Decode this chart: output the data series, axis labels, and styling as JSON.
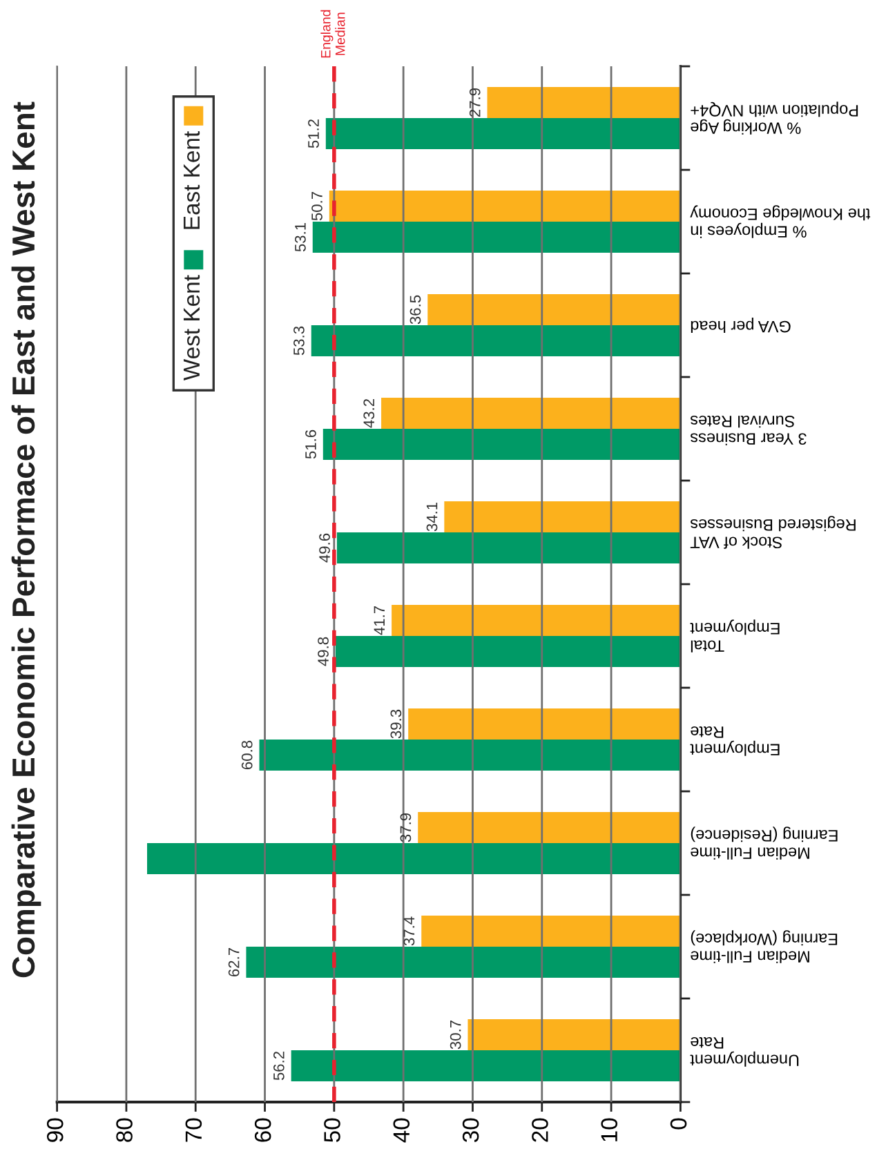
{
  "chart_data": {
    "type": "bar",
    "orientation": "horizontal",
    "title": "Comparative Economic Performace of East and West Kent",
    "categories": [
      "% Working Age\nPopulation with NVQ4+",
      "% Employees in\nthe Knowledge Economy",
      "GVA per head",
      "3 Year Business\nSurvival Rates",
      "Stock of VAT\nRegistered Businesses",
      "Total\nEmployment",
      "Employment\nRate",
      "Median Full-time\nEarning (Residence)",
      "Median Full-time\nEarning (Workplace)",
      "Unemployment\nRate"
    ],
    "series": [
      {
        "name": "West Kent",
        "color": "#009a66",
        "values": [
          51.2,
          53.1,
          53.3,
          51.6,
          49.6,
          49.8,
          60.8,
          77,
          62.7,
          56.2
        ],
        "value_labels": [
          "51.2",
          "53.1",
          "53.3",
          "51.6",
          "49.6",
          "49.8",
          "60.8",
          null,
          "62.7",
          "56.2"
        ]
      },
      {
        "name": "East Kent",
        "color": "#fcb11c",
        "values": [
          27.9,
          50.7,
          36.5,
          43.2,
          34.1,
          41.7,
          39.3,
          37.9,
          37.4,
          30.7
        ],
        "value_labels": [
          "27.9",
          "50.7",
          "36.5",
          "43.2",
          "34.1",
          "41.7",
          "39.3",
          "37.9",
          "37.4",
          "30.7"
        ]
      }
    ],
    "xlim": [
      90,
      0
    ],
    "xticks": [
      0,
      10,
      20,
      30,
      40,
      50,
      60,
      70,
      80,
      90
    ],
    "grid": "x",
    "legend": "top left",
    "ref_lines": [
      {
        "axis": "x",
        "value": 50,
        "label": "England\nMedian",
        "color": "#e8232f",
        "line_style": "dashed"
      }
    ]
  }
}
